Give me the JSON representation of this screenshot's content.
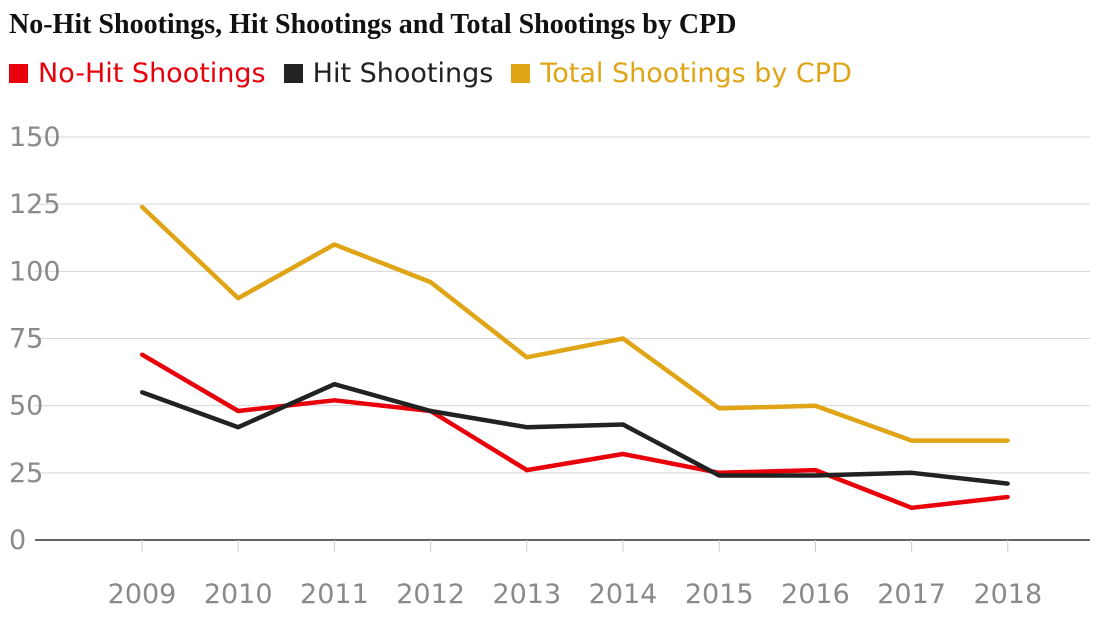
{
  "chart_data": {
    "type": "line",
    "title": "No-Hit Shootings, Hit Shootings and Total Shootings by CPD",
    "xlabel": "",
    "ylabel": "",
    "x": [
      "2009",
      "2010",
      "2011",
      "2012",
      "2013",
      "2014",
      "2015",
      "2016",
      "2017",
      "2018"
    ],
    "ylim": [
      0,
      150
    ],
    "yticks": [
      0,
      25,
      50,
      75,
      100,
      125,
      150
    ],
    "grid": true,
    "legend_position": "top-left",
    "series": [
      {
        "name": "No-Hit Shootings",
        "color": "#e8000b",
        "values": [
          69,
          48,
          52,
          48,
          26,
          32,
          25,
          26,
          12,
          16
        ]
      },
      {
        "name": "Hit Shootings",
        "color": "#222222",
        "values": [
          55,
          42,
          58,
          48,
          42,
          43,
          24,
          24,
          25,
          21
        ]
      },
      {
        "name": "Total Shootings by CPD",
        "color": "#e0a516",
        "values": [
          124,
          90,
          110,
          96,
          68,
          75,
          49,
          50,
          37,
          37
        ]
      }
    ]
  }
}
